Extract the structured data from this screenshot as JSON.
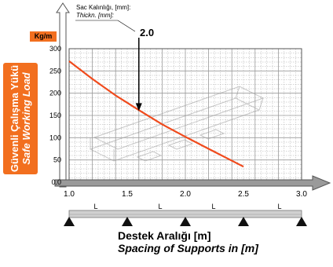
{
  "chart_data": {
    "type": "line",
    "title": "",
    "thickness_label": "Sac Kalınlığı, [mm]:",
    "thickness_label_en": "Thickn. [mm]:",
    "thickness_value": "2.0",
    "unit": "Kg/m",
    "ylabel": "Güvenli Çalışma Yükü",
    "ylabel_en": "Safe Working Load",
    "xlabel": "Destek Aralığı [m]",
    "xlabel_en": "Spacing of Supports in [m]",
    "xlim": [
      1.0,
      3.0
    ],
    "ylim": [
      0,
      300
    ],
    "x_ticks": [
      "1.0",
      "1.5",
      "2.0",
      "2.5",
      "3.0"
    ],
    "y_ticks": [
      "0.0",
      "50",
      "100",
      "150",
      "200",
      "250",
      "300"
    ],
    "grid": true,
    "span_marker": "L",
    "series": [
      {
        "color": "#f04a1c",
        "x": [
          1.0,
          1.2,
          1.4,
          1.6,
          1.8,
          2.0,
          2.2,
          2.5
        ],
        "y": [
          272,
          232,
          195,
          162,
          130,
          102,
          75,
          35
        ]
      }
    ],
    "annotation": {
      "label": "2.0",
      "x": 1.6
    }
  },
  "colors": {
    "accent": "#f26f1f",
    "curve": "#f04a1c",
    "grid": "#9a9a9a",
    "arrow": "#9a9a9a"
  }
}
